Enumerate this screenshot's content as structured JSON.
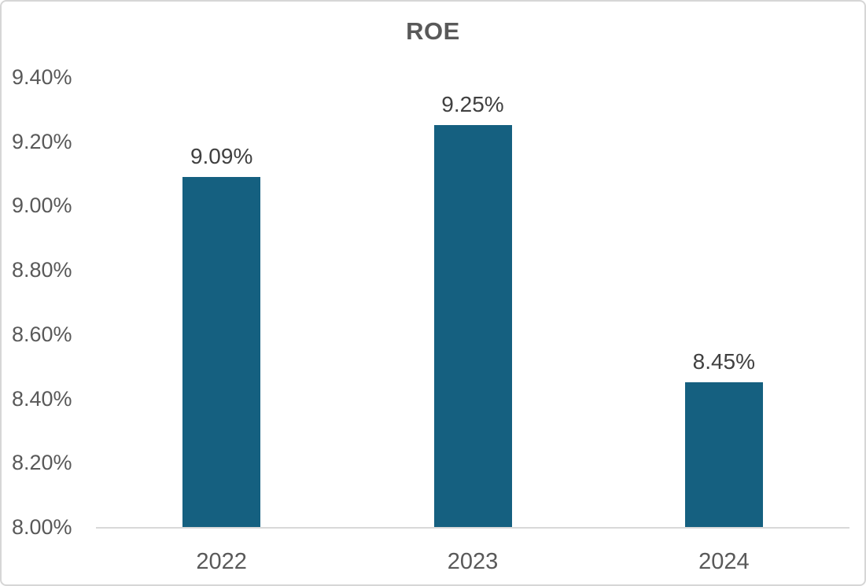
{
  "chart_data": {
    "type": "bar",
    "title": "ROE",
    "categories": [
      "2022",
      "2023",
      "2024"
    ],
    "values": [
      9.09,
      9.25,
      8.45
    ],
    "value_labels": [
      "9.09%",
      "9.25%",
      "8.45%"
    ],
    "y_ticks": [
      {
        "label": "9.40%",
        "value": 9.4
      },
      {
        "label": "9.20%",
        "value": 9.2
      },
      {
        "label": "9.00%",
        "value": 9.0
      },
      {
        "label": "8.80%",
        "value": 8.8
      },
      {
        "label": "8.60%",
        "value": 8.6
      },
      {
        "label": "8.40%",
        "value": 8.4
      },
      {
        "label": "8.20%",
        "value": 8.2
      },
      {
        "label": "8.00%",
        "value": 8.0
      }
    ],
    "ylim": [
      8.0,
      9.4
    ],
    "xlabel": "",
    "ylabel": "",
    "grid": false,
    "legend": false,
    "colors": {
      "bar": "#156080",
      "title": "#595959",
      "axis_labels": "#595959",
      "data_labels": "#404040",
      "axis_line": "#d9d9d9"
    }
  }
}
